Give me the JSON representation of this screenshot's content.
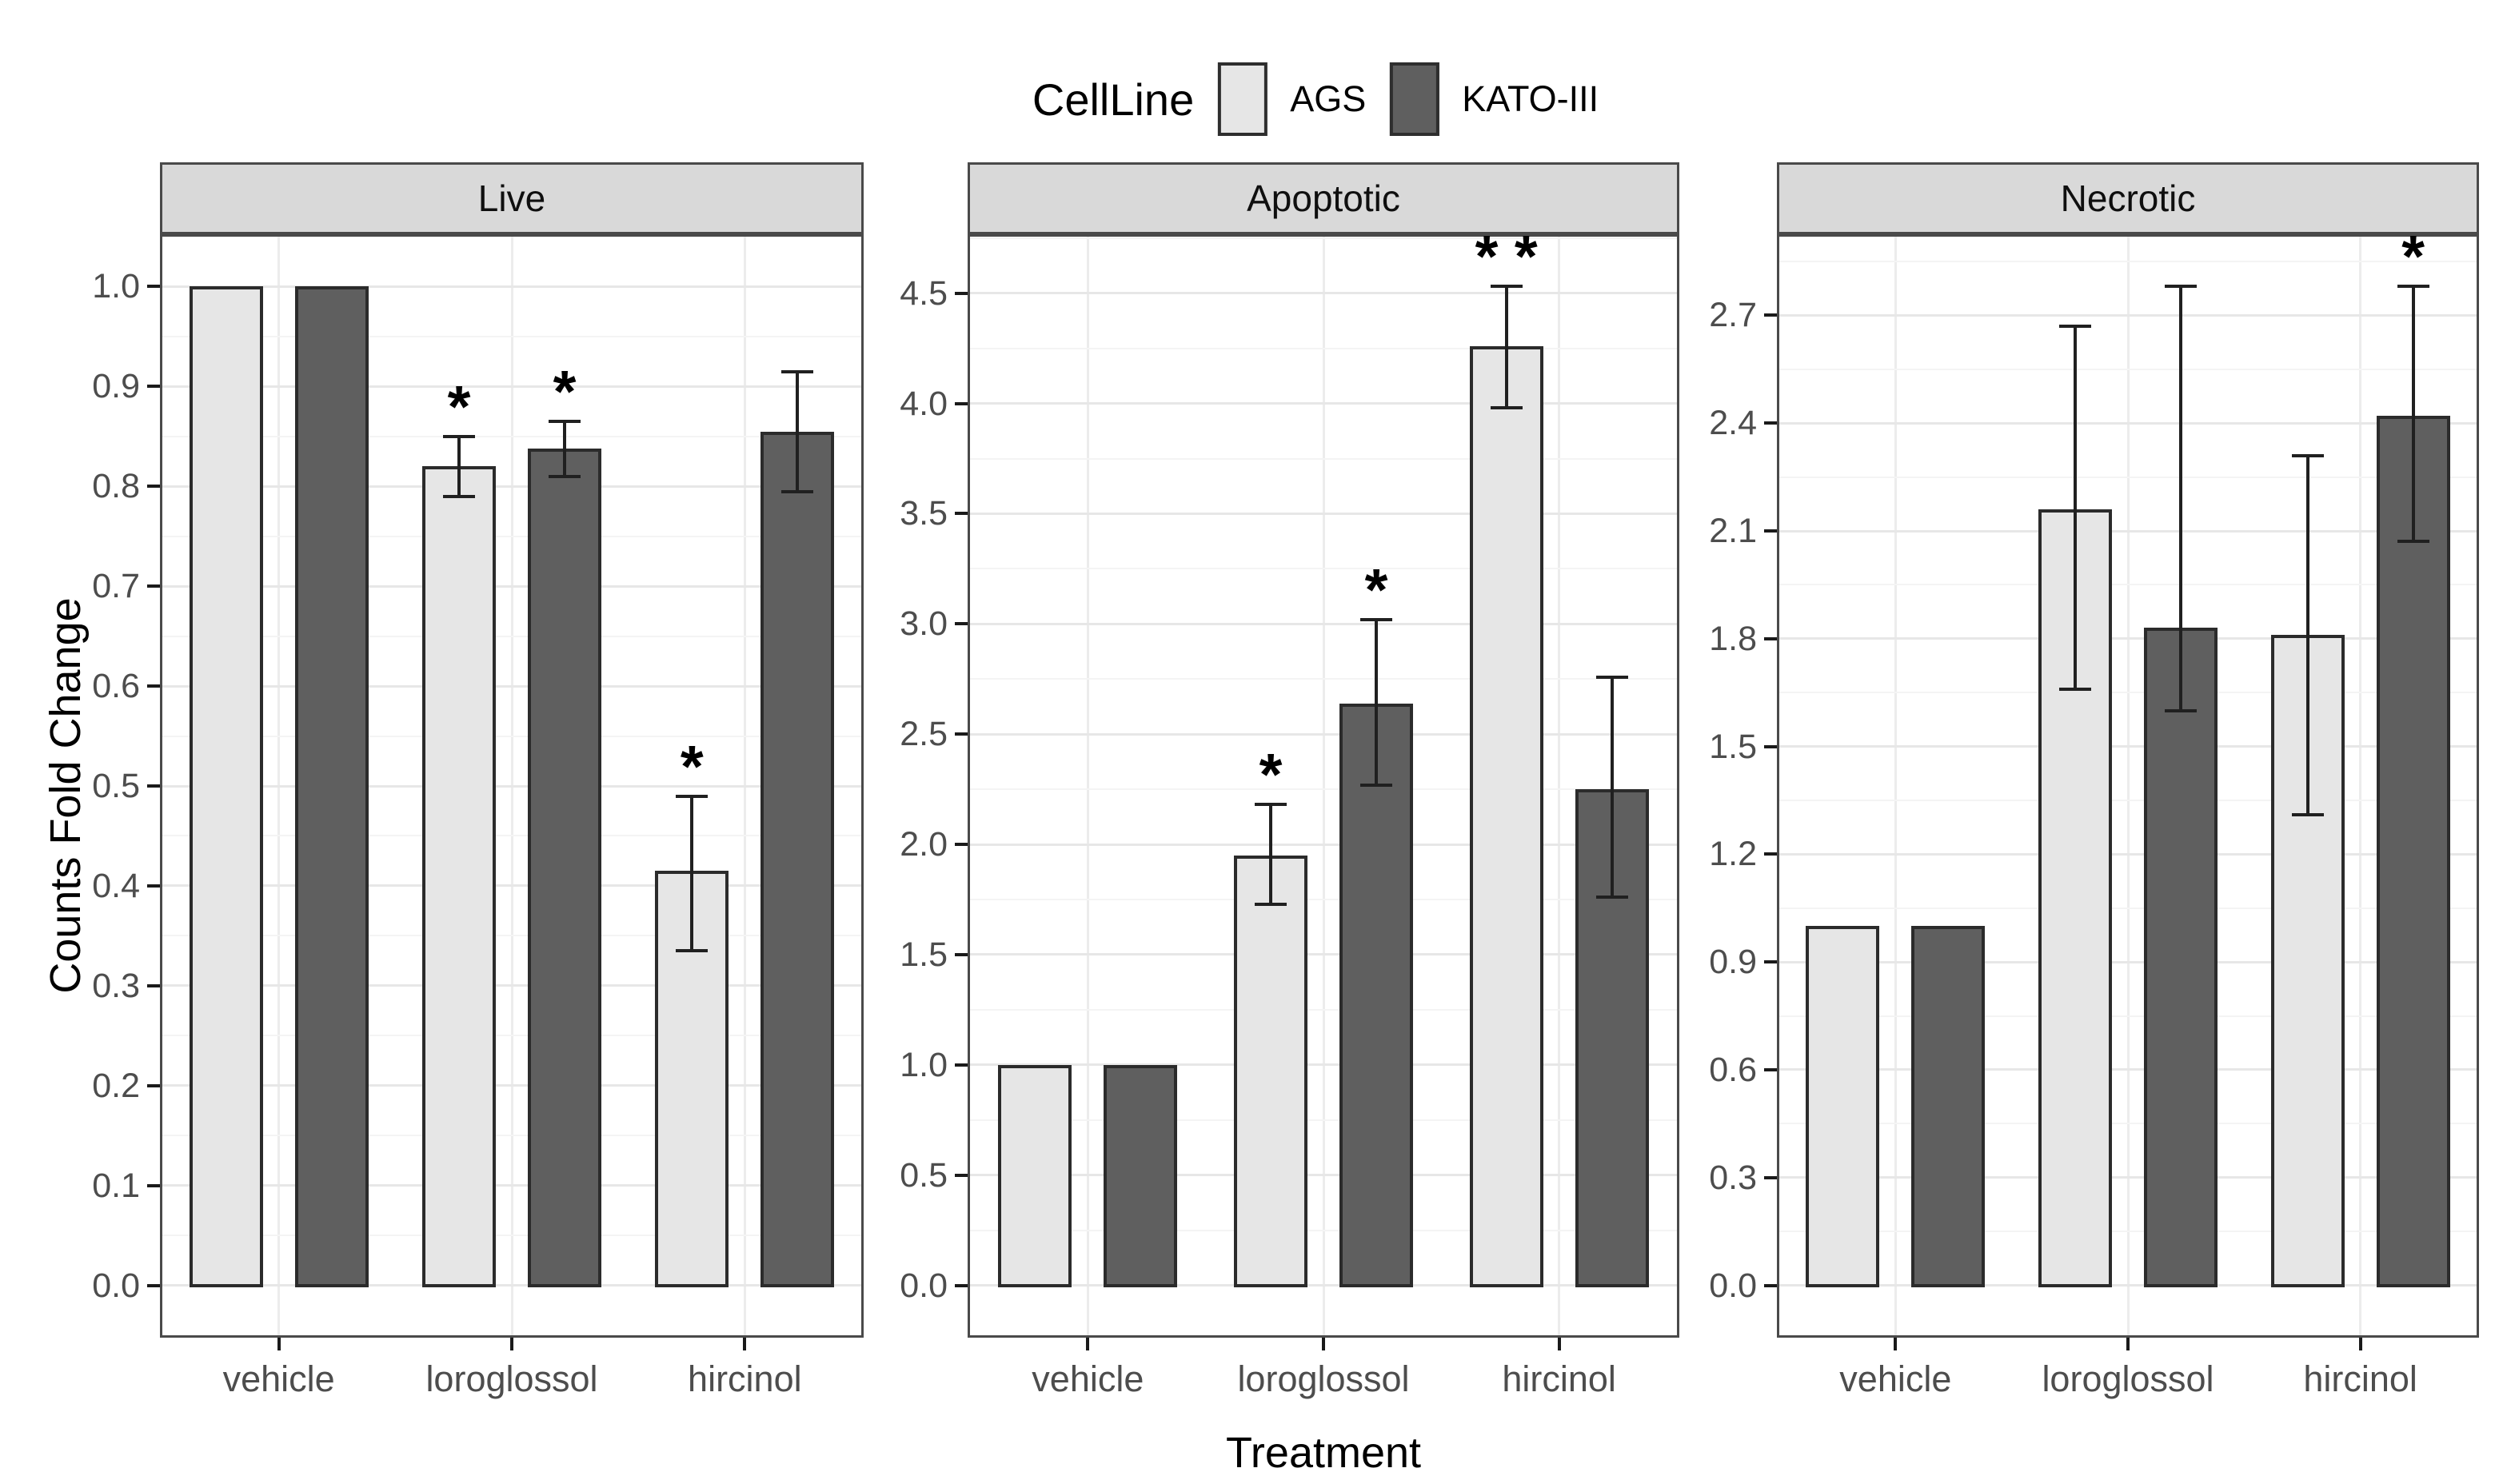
{
  "chart_data": {
    "type": "bar",
    "title": "",
    "ylabel": "Counts Fold Change",
    "xlabel": "Treatment",
    "grid": true,
    "legend": {
      "title": "CellLine",
      "position": "top",
      "entries": [
        {
          "label": "AGS",
          "fill": "#e6e6e6"
        },
        {
          "label": "KATO-III",
          "fill": "#5f5f5f"
        }
      ]
    },
    "colors": {
      "panel_border": "#4a4a4a",
      "strip_background": "#d9d9d9",
      "bar_border": "#2b2b2b",
      "error_bar": "#202020",
      "grid_major": "#e7e7e7",
      "grid_minor": "#f4f4f4",
      "tick_label": "#4d4d4d",
      "text": "#000000"
    },
    "categories": [
      "vehicle",
      "loroglossol",
      "hircinol"
    ],
    "facets": [
      {
        "title": "Live",
        "ylim": [
          -0.05,
          1.05
        ],
        "yticks": [
          0.0,
          0.1,
          0.2,
          0.3,
          0.4,
          0.5,
          0.6,
          0.7,
          0.8,
          0.9,
          1.0
        ],
        "ytick_labels": [
          "0.0",
          "0.1",
          "0.2",
          "0.3",
          "0.4",
          "0.5",
          "0.6",
          "0.7",
          "0.8",
          "0.9",
          "1.0"
        ],
        "series": [
          {
            "name": "AGS",
            "values": [
              1.0,
              0.82,
              0.415
            ],
            "err_low": [
              null,
              0.79,
              0.335
            ],
            "err_high": [
              null,
              0.85,
              0.49
            ],
            "sig": [
              "",
              "*",
              "*"
            ]
          },
          {
            "name": "KATO-III",
            "values": [
              1.0,
              0.838,
              0.855
            ],
            "err_low": [
              null,
              0.81,
              0.795
            ],
            "err_high": [
              null,
              0.865,
              0.915
            ],
            "sig": [
              "",
              "*",
              ""
            ]
          }
        ]
      },
      {
        "title": "Apoptotic",
        "ylim": [
          -0.2265,
          4.7565
        ],
        "yticks": [
          0.0,
          0.5,
          1.0,
          1.5,
          2.0,
          2.5,
          3.0,
          3.5,
          4.0,
          4.5
        ],
        "ytick_labels": [
          "0.0",
          "0.5",
          "1.0",
          "1.5",
          "2.0",
          "2.5",
          "3.0",
          "3.5",
          "4.0",
          "4.5"
        ],
        "series": [
          {
            "name": "AGS",
            "values": [
              1.0,
              1.95,
              4.26
            ],
            "err_low": [
              null,
              1.73,
              3.98
            ],
            "err_high": [
              null,
              2.18,
              4.53
            ],
            "sig": [
              "",
              "*",
              "* *"
            ]
          },
          {
            "name": "KATO-III",
            "values": [
              1.0,
              2.64,
              2.25
            ],
            "err_low": [
              null,
              2.27,
              1.76
            ],
            "err_high": [
              null,
              3.02,
              2.76
            ],
            "sig": [
              "",
              "*",
              ""
            ]
          }
        ]
      },
      {
        "title": "Necrotic",
        "ylim": [
          -0.139,
          2.919
        ],
        "yticks": [
          0.0,
          0.3,
          0.6,
          0.9,
          1.2,
          1.5,
          1.8,
          2.1,
          2.4,
          2.7
        ],
        "ytick_labels": [
          "0.0",
          "0.3",
          "0.6",
          "0.9",
          "1.2",
          "1.5",
          "1.8",
          "2.1",
          "2.4",
          "2.7"
        ],
        "series": [
          {
            "name": "AGS",
            "values": [
              1.0,
              2.16,
              1.81
            ],
            "err_low": [
              null,
              1.66,
              1.31
            ],
            "err_high": [
              null,
              2.67,
              2.31
            ],
            "sig": [
              "",
              "",
              ""
            ]
          },
          {
            "name": "KATO-III",
            "values": [
              1.0,
              1.83,
              2.42
            ],
            "err_low": [
              null,
              1.6,
              2.07
            ],
            "err_high": [
              null,
              2.78,
              2.78
            ],
            "sig": [
              "",
              "",
              "*"
            ]
          }
        ]
      }
    ]
  }
}
